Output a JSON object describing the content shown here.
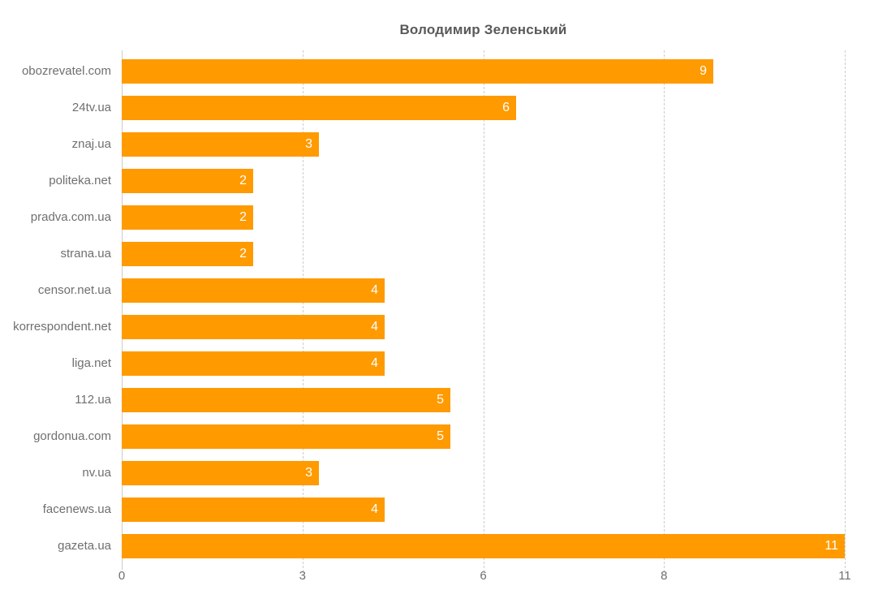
{
  "chart_data": {
    "type": "bar",
    "orientation": "horizontal",
    "title": "Володимир Зеленський",
    "categories": [
      "obozrevatel.com",
      "24tv.ua",
      "znaj.ua",
      "politeka.net",
      "pradva.com.ua",
      "strana.ua",
      "censor.net.ua",
      "korrespondent.net",
      "liga.net",
      "112.ua",
      "gordonua.com",
      "nv.ua",
      "facenews.ua",
      "gazeta.ua"
    ],
    "values": [
      9,
      6,
      3,
      2,
      2,
      2,
      4,
      4,
      4,
      5,
      5,
      3,
      4,
      11
    ],
    "xlabel": "",
    "ylabel": "",
    "xlim": [
      0,
      11
    ],
    "x_tick_labels": [
      "0",
      "3",
      "6",
      "8",
      "11"
    ],
    "value_labels_position": "inside-end",
    "legend_position": "none",
    "grid": "vertical-dashed",
    "colors": {
      "bar": "#FF9A00",
      "value_label": "#FFFFFF",
      "axis_text": "#6F6F6F",
      "title_text": "#595959",
      "gridline": "#CCCCCC",
      "background": "#FFFFFF"
    }
  }
}
